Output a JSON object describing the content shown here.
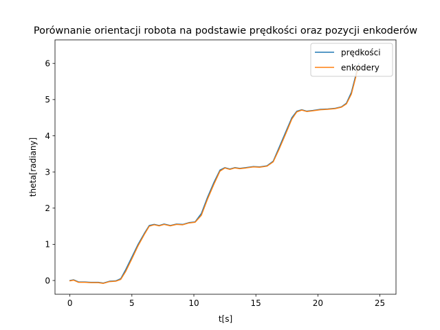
{
  "chart_data": {
    "type": "line",
    "title": "Porównanie orientacji robota na podstawie prędkości oraz pozycji enkoderów",
    "xlabel": "t[s]",
    "ylabel": "theta[radiany]",
    "xlim": [
      -1.2,
      26.3
    ],
    "ylim": [
      -0.38,
      6.65
    ],
    "xticks": [
      0,
      5,
      10,
      15,
      20,
      25
    ],
    "yticks": [
      0,
      1,
      2,
      3,
      4,
      5,
      6
    ],
    "grid": false,
    "legend_position": "top-right",
    "series": [
      {
        "name": "prędkości",
        "color": "#1f77b4",
        "points": [
          [
            0.0,
            0.0
          ],
          [
            0.3,
            0.02
          ],
          [
            0.7,
            -0.04
          ],
          [
            1.2,
            -0.04
          ],
          [
            1.7,
            -0.05
          ],
          [
            2.3,
            -0.05
          ],
          [
            2.7,
            -0.07
          ],
          [
            3.2,
            -0.02
          ],
          [
            3.7,
            -0.01
          ],
          [
            4.1,
            0.05
          ],
          [
            4.5,
            0.3
          ],
          [
            5.0,
            0.65
          ],
          [
            5.5,
            1.0
          ],
          [
            6.0,
            1.3
          ],
          [
            6.4,
            1.52
          ],
          [
            6.8,
            1.55
          ],
          [
            7.2,
            1.52
          ],
          [
            7.6,
            1.56
          ],
          [
            8.1,
            1.52
          ],
          [
            8.6,
            1.56
          ],
          [
            9.1,
            1.55
          ],
          [
            9.6,
            1.6
          ],
          [
            10.1,
            1.62
          ],
          [
            10.6,
            1.85
          ],
          [
            11.1,
            2.3
          ],
          [
            11.6,
            2.7
          ],
          [
            12.1,
            3.05
          ],
          [
            12.5,
            3.12
          ],
          [
            12.9,
            3.08
          ],
          [
            13.3,
            3.12
          ],
          [
            13.7,
            3.1
          ],
          [
            14.2,
            3.12
          ],
          [
            14.8,
            3.15
          ],
          [
            15.3,
            3.14
          ],
          [
            15.9,
            3.17
          ],
          [
            16.4,
            3.3
          ],
          [
            16.9,
            3.7
          ],
          [
            17.4,
            4.1
          ],
          [
            17.9,
            4.5
          ],
          [
            18.3,
            4.68
          ],
          [
            18.7,
            4.72
          ],
          [
            19.1,
            4.68
          ],
          [
            19.6,
            4.7
          ],
          [
            20.2,
            4.73
          ],
          [
            20.8,
            4.74
          ],
          [
            21.4,
            4.76
          ],
          [
            21.9,
            4.8
          ],
          [
            22.3,
            4.9
          ],
          [
            22.7,
            5.2
          ],
          [
            23.0,
            5.6
          ],
          [
            23.3,
            6.0
          ]
        ]
      },
      {
        "name": "enkodery",
        "color": "#ff7f0e",
        "points": [
          [
            0.0,
            -0.01
          ],
          [
            0.3,
            0.01
          ],
          [
            0.7,
            -0.05
          ],
          [
            1.2,
            -0.05
          ],
          [
            1.7,
            -0.06
          ],
          [
            2.3,
            -0.06
          ],
          [
            2.7,
            -0.08
          ],
          [
            3.2,
            -0.03
          ],
          [
            3.7,
            -0.02
          ],
          [
            4.1,
            0.03
          ],
          [
            4.5,
            0.25
          ],
          [
            5.0,
            0.6
          ],
          [
            5.5,
            0.96
          ],
          [
            6.0,
            1.27
          ],
          [
            6.4,
            1.5
          ],
          [
            6.8,
            1.54
          ],
          [
            7.2,
            1.51
          ],
          [
            7.6,
            1.55
          ],
          [
            8.1,
            1.51
          ],
          [
            8.6,
            1.55
          ],
          [
            9.1,
            1.54
          ],
          [
            9.6,
            1.59
          ],
          [
            10.1,
            1.61
          ],
          [
            10.6,
            1.8
          ],
          [
            11.1,
            2.25
          ],
          [
            11.6,
            2.65
          ],
          [
            12.1,
            3.02
          ],
          [
            12.5,
            3.11
          ],
          [
            12.9,
            3.07
          ],
          [
            13.3,
            3.11
          ],
          [
            13.7,
            3.09
          ],
          [
            14.2,
            3.11
          ],
          [
            14.8,
            3.14
          ],
          [
            15.3,
            3.13
          ],
          [
            15.9,
            3.16
          ],
          [
            16.4,
            3.28
          ],
          [
            16.9,
            3.65
          ],
          [
            17.4,
            4.05
          ],
          [
            17.9,
            4.46
          ],
          [
            18.3,
            4.66
          ],
          [
            18.7,
            4.71
          ],
          [
            19.1,
            4.67
          ],
          [
            19.6,
            4.69
          ],
          [
            20.2,
            4.72
          ],
          [
            20.8,
            4.73
          ],
          [
            21.4,
            4.75
          ],
          [
            21.9,
            4.79
          ],
          [
            22.3,
            4.88
          ],
          [
            22.7,
            5.15
          ],
          [
            23.0,
            5.55
          ],
          [
            23.3,
            5.95
          ]
        ]
      }
    ]
  }
}
